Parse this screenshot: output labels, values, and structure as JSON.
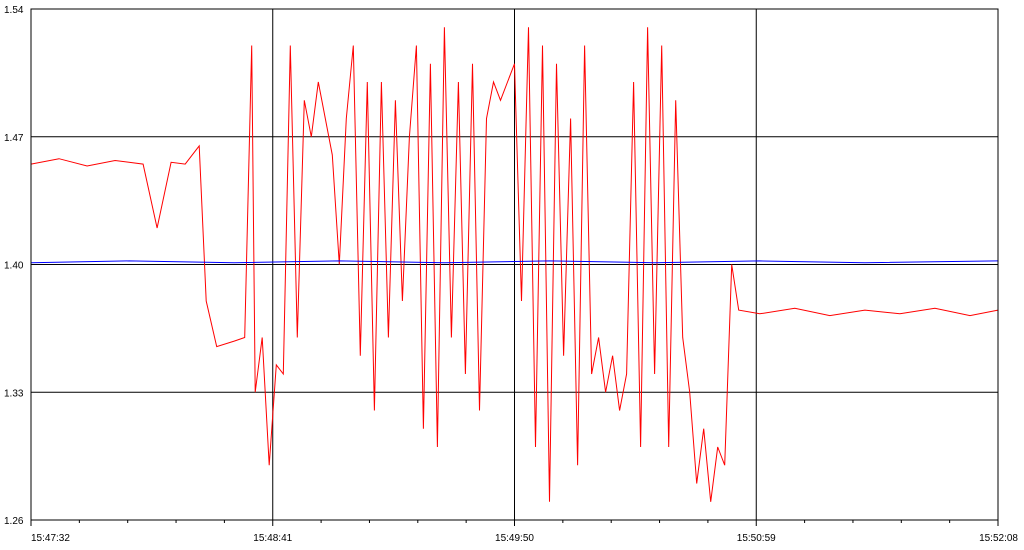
{
  "chart_data": {
    "type": "line",
    "title": "",
    "xlabel": "",
    "ylabel": "",
    "ylim": [
      1.26,
      1.54
    ],
    "x_range": [
      "15:47:32",
      "15:52:08"
    ],
    "y_ticks": [
      "1.54",
      "1.47",
      "1.40",
      "1.33",
      "1.26"
    ],
    "x_ticks": [
      "15:47:32",
      "15:48:41",
      "15:49:50",
      "15:50:59",
      "15:52:08"
    ],
    "grid": true,
    "legend": "none",
    "colors": {
      "series_a": "#ff0000",
      "series_b": "#0000ff",
      "grid": "#000000"
    },
    "series": [
      {
        "color": "#ff0000",
        "points": [
          [
            "15:47:32",
            1.455
          ],
          [
            "15:47:40",
            1.458
          ],
          [
            "15:47:48",
            1.454
          ],
          [
            "15:47:56",
            1.457
          ],
          [
            "15:48:04",
            1.455
          ],
          [
            "15:48:08",
            1.42
          ],
          [
            "15:48:12",
            1.456
          ],
          [
            "15:48:16",
            1.455
          ],
          [
            "15:48:20",
            1.465
          ],
          [
            "15:48:22",
            1.38
          ],
          [
            "15:48:25",
            1.355
          ],
          [
            "15:48:30",
            1.358
          ],
          [
            "15:48:33",
            1.36
          ],
          [
            "15:48:35",
            1.52
          ],
          [
            "15:48:36",
            1.33
          ],
          [
            "15:48:38",
            1.36
          ],
          [
            "15:48:40",
            1.29
          ],
          [
            "15:48:42",
            1.345
          ],
          [
            "15:48:44",
            1.34
          ],
          [
            "15:48:46",
            1.52
          ],
          [
            "15:48:48",
            1.36
          ],
          [
            "15:48:50",
            1.49
          ],
          [
            "15:48:52",
            1.47
          ],
          [
            "15:48:54",
            1.5
          ],
          [
            "15:48:56",
            1.48
          ],
          [
            "15:48:58",
            1.46
          ],
          [
            "15:49:00",
            1.4
          ],
          [
            "15:49:02",
            1.48
          ],
          [
            "15:49:04",
            1.52
          ],
          [
            "15:49:06",
            1.35
          ],
          [
            "15:49:08",
            1.5
          ],
          [
            "15:49:10",
            1.32
          ],
          [
            "15:49:12",
            1.5
          ],
          [
            "15:49:14",
            1.36
          ],
          [
            "15:49:16",
            1.49
          ],
          [
            "15:49:18",
            1.38
          ],
          [
            "15:49:20",
            1.47
          ],
          [
            "15:49:22",
            1.52
          ],
          [
            "15:49:24",
            1.31
          ],
          [
            "15:49:26",
            1.51
          ],
          [
            "15:49:28",
            1.3
          ],
          [
            "15:49:30",
            1.53
          ],
          [
            "15:49:32",
            1.36
          ],
          [
            "15:49:34",
            1.5
          ],
          [
            "15:49:36",
            1.34
          ],
          [
            "15:49:38",
            1.51
          ],
          [
            "15:49:40",
            1.32
          ],
          [
            "15:49:42",
            1.48
          ],
          [
            "15:49:44",
            1.5
          ],
          [
            "15:49:46",
            1.49
          ],
          [
            "15:49:48",
            1.5
          ],
          [
            "15:49:50",
            1.51
          ],
          [
            "15:49:52",
            1.38
          ],
          [
            "15:49:54",
            1.53
          ],
          [
            "15:49:56",
            1.3
          ],
          [
            "15:49:58",
            1.52
          ],
          [
            "15:50:00",
            1.27
          ],
          [
            "15:50:02",
            1.51
          ],
          [
            "15:50:04",
            1.35
          ],
          [
            "15:50:06",
            1.48
          ],
          [
            "15:50:08",
            1.29
          ],
          [
            "15:50:10",
            1.52
          ],
          [
            "15:50:12",
            1.34
          ],
          [
            "15:50:14",
            1.36
          ],
          [
            "15:50:16",
            1.33
          ],
          [
            "15:50:18",
            1.35
          ],
          [
            "15:50:20",
            1.32
          ],
          [
            "15:50:22",
            1.34
          ],
          [
            "15:50:24",
            1.5
          ],
          [
            "15:50:26",
            1.3
          ],
          [
            "15:50:28",
            1.53
          ],
          [
            "15:50:30",
            1.34
          ],
          [
            "15:50:32",
            1.52
          ],
          [
            "15:50:34",
            1.3
          ],
          [
            "15:50:36",
            1.49
          ],
          [
            "15:50:38",
            1.36
          ],
          [
            "15:50:40",
            1.33
          ],
          [
            "15:50:42",
            1.28
          ],
          [
            "15:50:44",
            1.31
          ],
          [
            "15:50:46",
            1.27
          ],
          [
            "15:50:48",
            1.3
          ],
          [
            "15:50:50",
            1.29
          ],
          [
            "15:50:52",
            1.4
          ],
          [
            "15:50:54",
            1.375
          ],
          [
            "15:51:00",
            1.373
          ],
          [
            "15:51:10",
            1.376
          ],
          [
            "15:51:20",
            1.372
          ],
          [
            "15:51:30",
            1.375
          ],
          [
            "15:51:40",
            1.373
          ],
          [
            "15:51:50",
            1.376
          ],
          [
            "15:52:00",
            1.372
          ],
          [
            "15:52:08",
            1.375
          ]
        ]
      },
      {
        "color": "#0000ff",
        "points": [
          [
            "15:47:32",
            1.401
          ],
          [
            "15:48:00",
            1.402
          ],
          [
            "15:48:30",
            1.401
          ],
          [
            "15:49:00",
            1.402
          ],
          [
            "15:49:30",
            1.401
          ],
          [
            "15:50:00",
            1.402
          ],
          [
            "15:50:30",
            1.401
          ],
          [
            "15:51:00",
            1.402
          ],
          [
            "15:51:30",
            1.401
          ],
          [
            "15:52:08",
            1.402
          ]
        ]
      }
    ]
  }
}
